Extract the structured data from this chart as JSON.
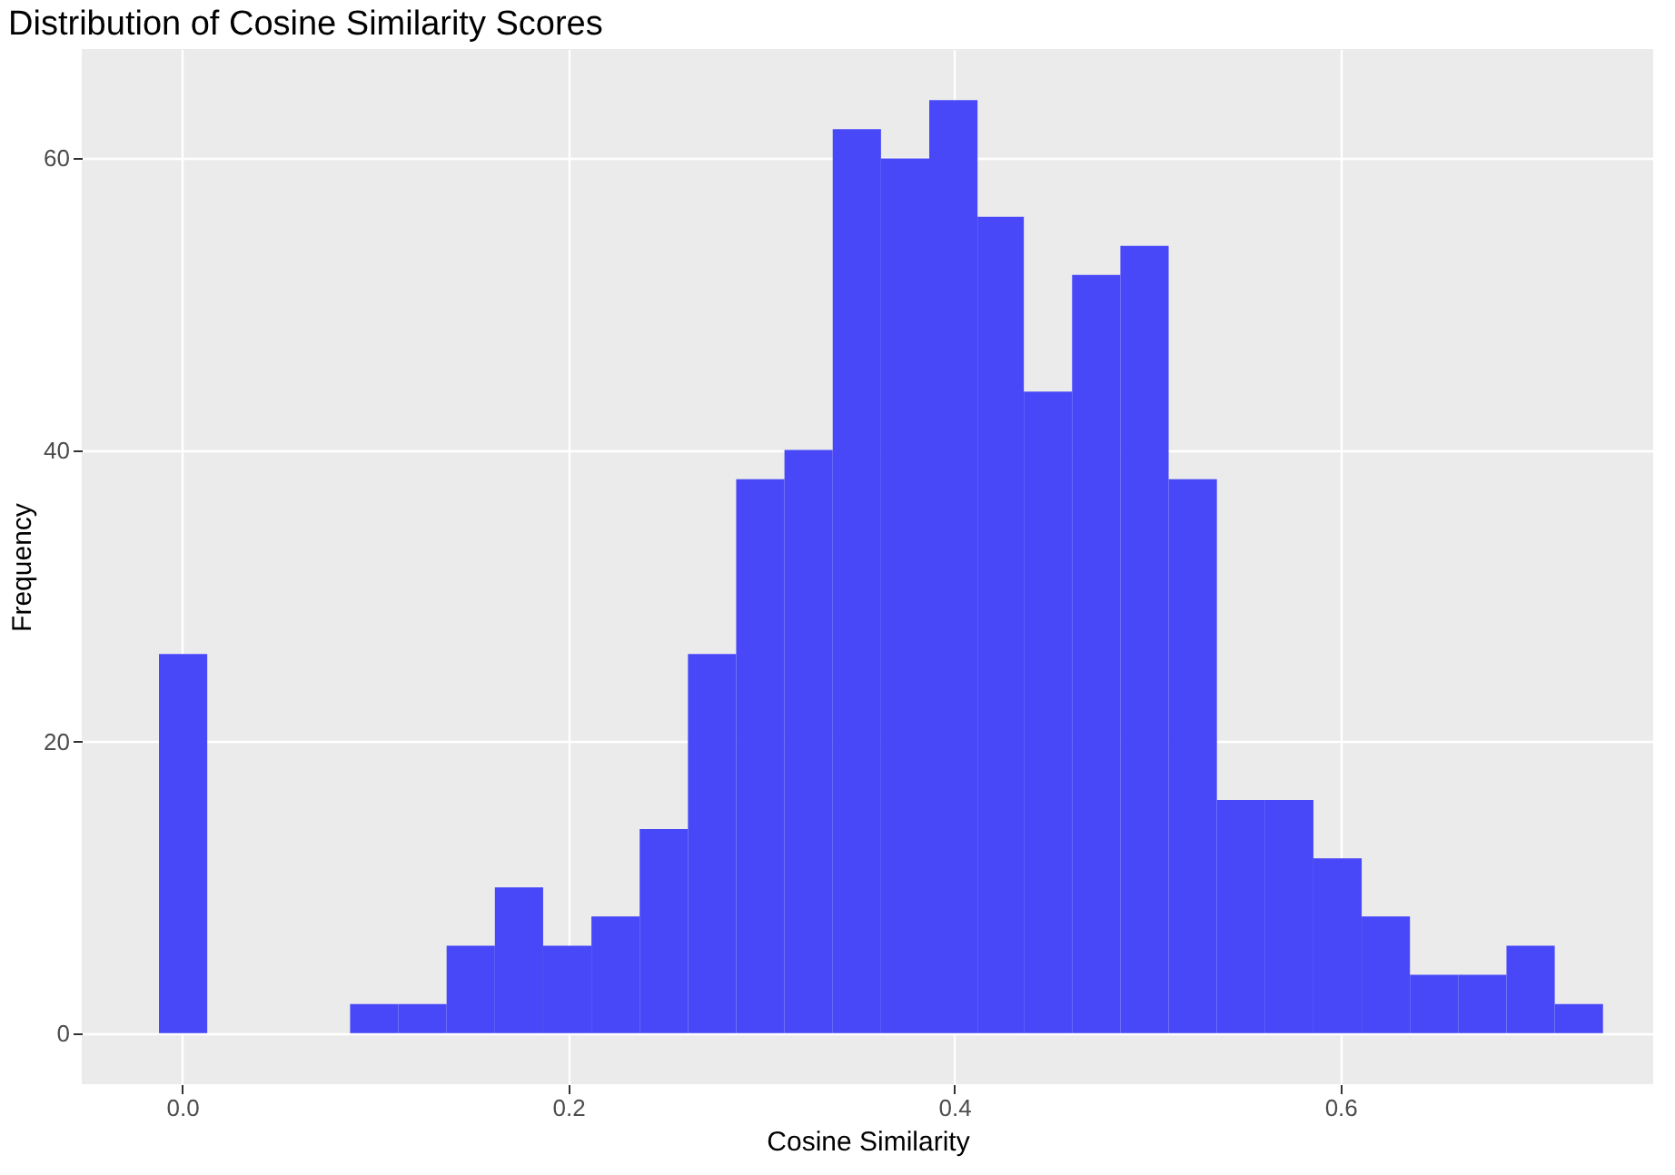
{
  "chart_data": {
    "type": "histogram",
    "title": "Distribution of Cosine Similarity Scores",
    "xlabel": "Cosine Similarity",
    "ylabel": "Frequency",
    "bins": [
      -0.012,
      0.013,
      0.087,
      0.112,
      0.137,
      0.162,
      0.187,
      0.212,
      0.237,
      0.262,
      0.287,
      0.312,
      0.337,
      0.362,
      0.387,
      0.412,
      0.436,
      0.461,
      0.486,
      0.511,
      0.536,
      0.561,
      0.586,
      0.611,
      0.636,
      0.661,
      0.686,
      0.711,
      0.736
    ],
    "values": [
      26,
      0,
      2,
      2,
      6,
      10,
      6,
      8,
      14,
      26,
      38,
      40,
      62,
      60,
      64,
      56,
      44,
      52,
      54,
      38,
      16,
      16,
      12,
      8,
      4,
      4,
      6,
      2
    ],
    "color": "#4848f8",
    "xlim": [
      -0.052,
      0.762
    ],
    "xticks": [
      {
        "value": 0,
        "label": "0.0"
      },
      0.2,
      0.4,
      0.6
    ],
    "ylim": [
      -3.5,
      67.5
    ],
    "yticks": [
      0,
      20,
      40,
      60
    ],
    "grid": true
  }
}
